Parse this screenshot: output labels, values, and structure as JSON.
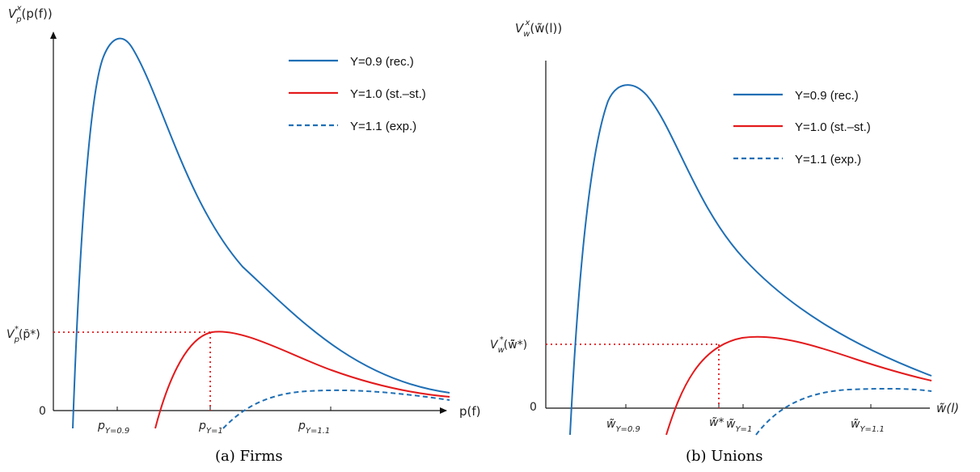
{
  "chart_data": [
    {
      "type": "line",
      "caption": "(a) Firms",
      "ylabel": "V",
      "ylabel_sub": "p",
      "ylabel_sup": "x",
      "ylabel_arg": "(p(f))",
      "xlabel": "p(f)",
      "y_zero_label": "0",
      "y_star_label": "V",
      "y_star_sub": "p",
      "y_star_sup": "*",
      "y_star_arg": "(p̄*)",
      "x_ticks": [
        {
          "main": "p",
          "sub": "Y=0.9"
        },
        {
          "main": "p",
          "sub": "Y=1"
        },
        {
          "main": "p",
          "sub": "Y=1.1"
        }
      ],
      "series": [
        {
          "name": "Y=0.9 (rec.)",
          "color": "#1f6fb5",
          "dash": false
        },
        {
          "name": "Y=1.0 (st.–st.)",
          "color": "#e31a1c",
          "dash": false
        },
        {
          "name": "Y=1.1 (exp.)",
          "color": "#1f6fb5",
          "dash": true
        }
      ]
    },
    {
      "type": "line",
      "caption": "(b) Unions",
      "ylabel": "V",
      "ylabel_sub": "w",
      "ylabel_sup": "x",
      "ylabel_arg": "(w̃(l))",
      "xlabel": "w̃(l)",
      "y_zero_label": "0",
      "y_star_label": "V",
      "y_star_sub": "w",
      "y_star_sup": "*",
      "y_star_arg": "(w̃̄*)",
      "x_ticks": [
        {
          "main": "w̃",
          "sub": "Y=0.9"
        },
        {
          "main": "w̃*",
          "sub": ""
        },
        {
          "main": "w̃",
          "sub": "Y=1"
        },
        {
          "main": "w̃",
          "sub": "Y=1.1"
        }
      ],
      "series": [
        {
          "name": "Y=0.9 (rec.)",
          "color": "#1f6fb5",
          "dash": false
        },
        {
          "name": "Y=1.0 (st.–st.)",
          "color": "#e31a1c",
          "dash": false
        },
        {
          "name": "Y=1.1 (exp.)",
          "color": "#1f6fb5",
          "dash": true
        }
      ]
    }
  ]
}
